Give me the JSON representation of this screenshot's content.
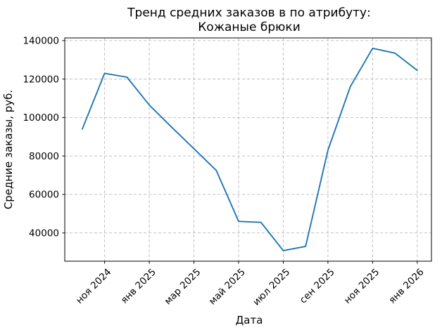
{
  "figure": {
    "title_line1": "Тренд средних заказов в  по атрибуту:",
    "title_line2": "Кожаные брюки",
    "xlabel": "Дата",
    "ylabel": "Средние заказы, руб."
  },
  "chart_data": {
    "type": "line",
    "title": "Тренд средних заказов в  по атрибуту:\nКожаные брюки",
    "xlabel": "Дата",
    "ylabel": "Средние заказы, руб.",
    "categories": [
      "окт 2024",
      "ноя 2024",
      "дек 2024",
      "янв 2025",
      "фев 2025",
      "мар 2025",
      "апр 2025",
      "май 2025",
      "июн 2025",
      "июл 2025",
      "авг 2025",
      "сен 2025",
      "окт 2025",
      "ноя 2025",
      "дек 2025",
      "янв 2026"
    ],
    "values": [
      94000,
      123000,
      121000,
      106500,
      95000,
      83800,
      72500,
      46000,
      45500,
      30800,
      33000,
      83000,
      116000,
      136000,
      133500,
      124500
    ],
    "x_tick_labels": [
      "ноя 2024",
      "янв 2025",
      "мар 2025",
      "май 2025",
      "июл 2025",
      "сен 2025",
      "ноя 2025",
      "янв 2026"
    ],
    "x_tick_indices": [
      1,
      3,
      5,
      7,
      9,
      11,
      13,
      15
    ],
    "x_tick_rotation_deg": 45,
    "y_ticks": [
      40000,
      60000,
      80000,
      100000,
      120000,
      140000
    ],
    "ylim": [
      25300,
      141400
    ],
    "grid": true,
    "grid_linestyle": "dashed",
    "legend": "none",
    "line_color": "#1f77b4"
  }
}
